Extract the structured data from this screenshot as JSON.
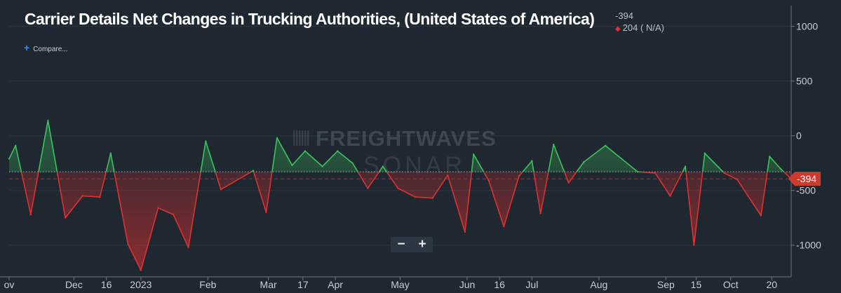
{
  "header": {
    "title": "Carrier Details Net Changes in Trucking Authorities, (United States of America)",
    "latest_value": "-394",
    "change_text": "204 ( N/A)",
    "compare_label": "Compare..."
  },
  "watermark": {
    "line1": "FREIGHTWAVES",
    "line2": "SONAR"
  },
  "zoom": {
    "minus": "−",
    "plus": "+"
  },
  "colors": {
    "background": "#1f2730",
    "up": "#3cc35e",
    "down": "#e03131",
    "axis_text": "#c8ced6",
    "last_value_badge": "#d03a2e"
  },
  "chart_data": {
    "type": "area",
    "title": "Carrier Details Net Changes in Trucking Authorities, (United States of America)",
    "xlabel": "",
    "ylabel": "",
    "y_ticks": [
      1000,
      500,
      0,
      -500,
      -1000
    ],
    "y_tick_labels": [
      "1000",
      "500",
      "0",
      "-500",
      "-1000"
    ],
    "ylim": [
      -1290,
      1190
    ],
    "xlim": [
      "2022-11-01",
      "2023-10-29"
    ],
    "x_ticks": [
      {
        "date": "2022-11-01",
        "label": "ov"
      },
      {
        "date": "2022-12-01",
        "label": "Dec"
      },
      {
        "date": "2022-12-16",
        "label": "16"
      },
      {
        "date": "2023-01-01",
        "label": "2023"
      },
      {
        "date": "2023-02-01",
        "label": "Feb"
      },
      {
        "date": "2023-03-01",
        "label": "Mar"
      },
      {
        "date": "2023-03-17",
        "label": "17"
      },
      {
        "date": "2023-04-01",
        "label": "Apr"
      },
      {
        "date": "2023-05-01",
        "label": "May"
      },
      {
        "date": "2023-06-01",
        "label": "Jun"
      },
      {
        "date": "2023-06-16",
        "label": "16"
      },
      {
        "date": "2023-07-01",
        "label": "Jul"
      },
      {
        "date": "2023-08-01",
        "label": "Aug"
      },
      {
        "date": "2023-09-01",
        "label": "Sep"
      },
      {
        "date": "2023-09-15",
        "label": "15"
      },
      {
        "date": "2023-10-01",
        "label": "Oct"
      },
      {
        "date": "2023-10-20",
        "label": "20"
      }
    ],
    "baseline": -330,
    "reference_line": -394,
    "last_value_label": "-394",
    "grid": true,
    "series": [
      {
        "x": [
          "2022-11-01",
          "2022-11-04",
          "2022-11-11",
          "2022-11-19",
          "2022-11-27",
          "2022-12-05",
          "2022-12-13",
          "2022-12-18",
          "2022-12-26",
          "2023-01-01",
          "2023-01-09",
          "2023-01-16",
          "2023-01-23",
          "2023-01-31",
          "2023-02-07",
          "2023-02-22",
          "2023-02-28",
          "2023-03-05",
          "2023-03-12",
          "2023-03-18",
          "2023-03-26",
          "2023-04-02",
          "2023-04-09",
          "2023-04-16",
          "2023-04-23",
          "2023-04-30",
          "2023-05-08",
          "2023-05-16",
          "2023-05-23",
          "2023-05-31",
          "2023-06-04",
          "2023-06-11",
          "2023-06-18",
          "2023-06-25",
          "2023-07-01",
          "2023-07-05",
          "2023-07-11",
          "2023-07-18",
          "2023-07-25",
          "2023-08-04",
          "2023-08-19",
          "2023-08-27",
          "2023-09-03",
          "2023-09-10",
          "2023-09-14",
          "2023-09-19",
          "2023-09-28",
          "2023-10-04",
          "2023-10-15",
          "2023-10-19",
          "2023-10-24",
          "2023-10-29"
        ],
        "values": [
          -210,
          -90,
          -720,
          140,
          -750,
          -550,
          -560,
          -160,
          -990,
          -1230,
          -660,
          -720,
          -1020,
          -50,
          -490,
          -320,
          -700,
          -20,
          -270,
          -140,
          -280,
          -140,
          -250,
          -480,
          -280,
          -480,
          -560,
          -570,
          -360,
          -880,
          -170,
          -410,
          -830,
          -370,
          -230,
          -710,
          -80,
          -430,
          -240,
          -90,
          -330,
          -340,
          -550,
          -280,
          -1000,
          -160,
          -340,
          -400,
          -730,
          -190,
          -300,
          -394
        ]
      }
    ]
  }
}
